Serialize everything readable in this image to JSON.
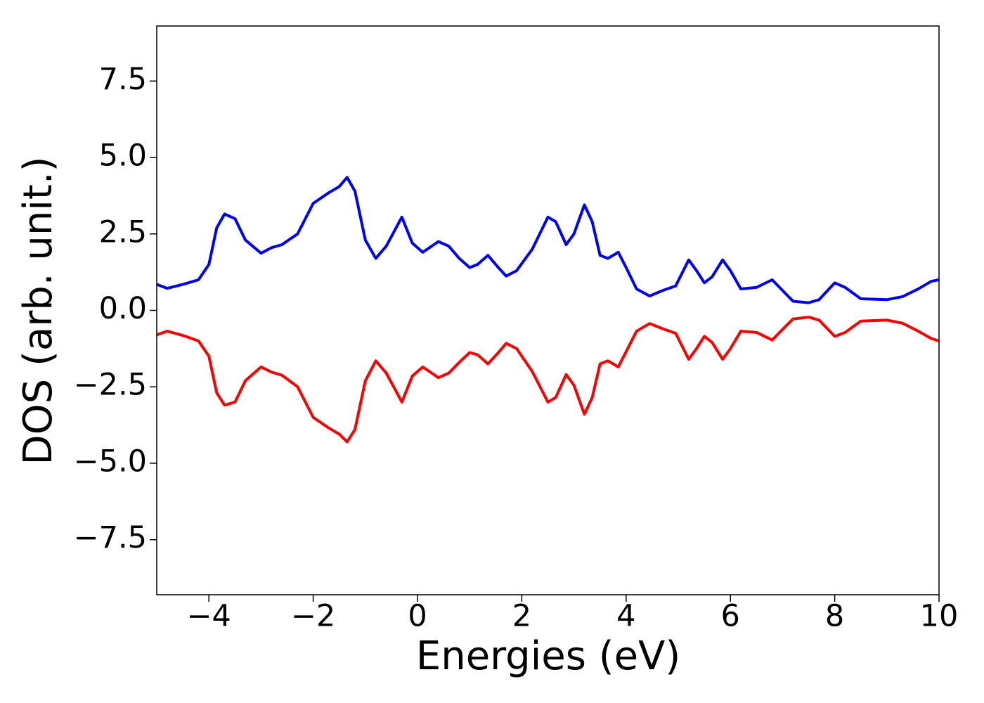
{
  "chart_data": {
    "type": "line",
    "xlabel": "Energies (eV)",
    "ylabel": "DOS (arb. unit.)",
    "xlim": [
      -5,
      10
    ],
    "ylim": [
      -9.3,
      9.3
    ],
    "xticks": [
      {
        "value": -4,
        "label": "−4"
      },
      {
        "value": -2,
        "label": "−2"
      },
      0,
      2,
      4,
      6,
      8,
      10
    ],
    "yticks": [
      {
        "value": -7.5,
        "label": "−7.5"
      },
      {
        "value": -5,
        "label": "−5.0"
      },
      {
        "value": -2.5,
        "label": "−2.5"
      },
      {
        "value": 0,
        "label": "0.0"
      },
      2.5,
      {
        "value": 5,
        "label": "5.0"
      },
      7.5
    ],
    "x": [
      -5,
      -4.8,
      -4.5,
      -4.2,
      -4.0,
      -3.85,
      -3.7,
      -3.5,
      -3.3,
      -3.0,
      -2.8,
      -2.6,
      -2.3,
      -2.0,
      -1.7,
      -1.5,
      -1.35,
      -1.2,
      -1.0,
      -0.8,
      -0.6,
      -0.3,
      -0.1,
      0.1,
      0.4,
      0.6,
      0.8,
      1.0,
      1.15,
      1.35,
      1.55,
      1.7,
      1.9,
      2.2,
      2.5,
      2.65,
      2.85,
      3.0,
      3.2,
      3.35,
      3.5,
      3.65,
      3.85,
      4.0,
      4.2,
      4.45,
      4.7,
      4.95,
      5.2,
      5.35,
      5.5,
      5.65,
      5.85,
      6.0,
      6.2,
      6.5,
      6.8,
      7.0,
      7.2,
      7.5,
      7.7,
      8.0,
      8.2,
      8.5,
      9.0,
      9.3,
      9.6,
      9.85,
      10
    ],
    "series": [
      {
        "color": "#0000ff",
        "values": [
          0.85,
          0.72,
          0.85,
          1.0,
          1.5,
          2.7,
          3.15,
          3.0,
          2.3,
          1.87,
          2.05,
          2.15,
          2.5,
          3.5,
          3.85,
          4.05,
          4.35,
          3.9,
          2.3,
          1.7,
          2.1,
          3.05,
          2.2,
          1.9,
          2.25,
          2.1,
          1.7,
          1.4,
          1.5,
          1.8,
          1.4,
          1.12,
          1.3,
          2.0,
          3.05,
          2.9,
          2.15,
          2.5,
          3.45,
          2.9,
          1.8,
          1.7,
          1.9,
          1.4,
          0.7,
          0.47,
          0.65,
          0.8,
          1.65,
          1.3,
          0.9,
          1.1,
          1.65,
          1.3,
          0.7,
          0.75,
          1.0,
          0.65,
          0.3,
          0.25,
          0.35,
          0.9,
          0.75,
          0.38,
          0.35,
          0.45,
          0.7,
          0.95,
          1.0
        ]
      },
      {
        "color": "#ff0000",
        "values": [
          -0.8,
          -0.68,
          -0.82,
          -1.0,
          -1.5,
          -2.7,
          -3.1,
          -3.0,
          -2.3,
          -1.85,
          -2.02,
          -2.12,
          -2.5,
          -3.5,
          -3.85,
          -4.05,
          -4.3,
          -3.9,
          -2.3,
          -1.65,
          -2.05,
          -3.0,
          -2.15,
          -1.85,
          -2.2,
          -2.05,
          -1.7,
          -1.38,
          -1.45,
          -1.75,
          -1.38,
          -1.08,
          -1.25,
          -2.0,
          -3.0,
          -2.85,
          -2.1,
          -2.45,
          -3.4,
          -2.85,
          -1.75,
          -1.65,
          -1.85,
          -1.35,
          -0.68,
          -0.43,
          -0.6,
          -0.75,
          -1.6,
          -1.25,
          -0.85,
          -1.05,
          -1.6,
          -1.25,
          -0.68,
          -0.72,
          -0.97,
          -0.62,
          -0.28,
          -0.22,
          -0.32,
          -0.85,
          -0.72,
          -0.35,
          -0.32,
          -0.42,
          -0.68,
          -0.92,
          -1.0
        ]
      }
    ]
  }
}
